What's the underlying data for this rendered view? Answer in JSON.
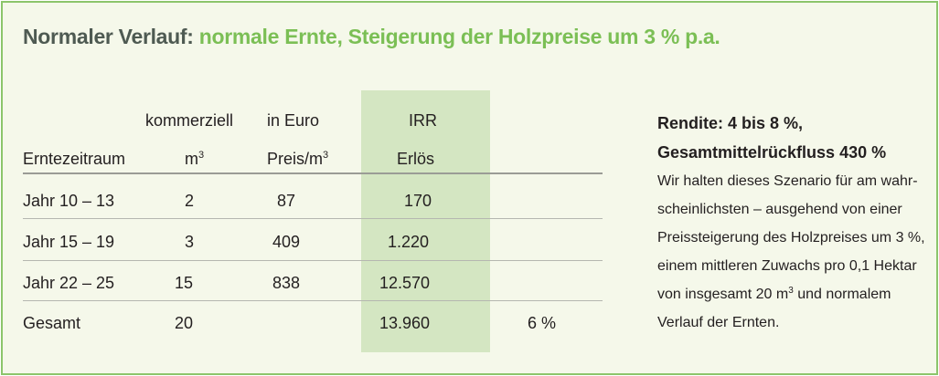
{
  "title": {
    "lead": "Normaler Verlauf:",
    "rest": " normale Ernte, Steigerung der Holzpreise um 3 % p.a."
  },
  "table": {
    "headers": {
      "col1": "Erntezeitraum",
      "col2_top": "kommerziell",
      "col2_unit": "m",
      "col2_sup": "3",
      "col3_top": "in Euro",
      "col3_unit": "Preis/m",
      "col3_sup": "3",
      "col4_top": "IRR",
      "col4_bottom": "Erlös"
    },
    "rows": [
      {
        "period": "Jahr 10 – 13",
        "volume": "2",
        "price": "87",
        "revenue": "170",
        "irr": ""
      },
      {
        "period": "Jahr 15 – 19",
        "volume": "3",
        "price": "409",
        "revenue": "1.220",
        "irr": ""
      },
      {
        "period": "Jahr 22 – 25",
        "volume": "15",
        "price": "838",
        "revenue": "12.570",
        "irr": ""
      },
      {
        "period": "Gesamt",
        "volume": "20",
        "price": "",
        "revenue": "13.960",
        "irr": "6 %"
      }
    ]
  },
  "sidebar": {
    "heading_1": "Rendite: 4 bis 8 %,",
    "heading_2": "Gesamtmittelrückfluss 430 %",
    "lines": [
      "Wir halten dieses Szenario für am wahr-",
      "scheinlichsten – ausgehend von einer",
      "Preissteigerung des Holzpreises um 3 %,",
      "einem mittleren Zuwachs pro 0,1 Hektar"
    ],
    "line5_pre": "von insgesamt 20 m",
    "line5_sup": "3",
    "line5_post": " und normalem",
    "line6": "Verlauf der Ernten."
  },
  "colors": {
    "border": "#8cc56b",
    "title_dark": "#4e5a52",
    "title_green": "#7bbf55",
    "irr_band": "#d4e6c2"
  }
}
